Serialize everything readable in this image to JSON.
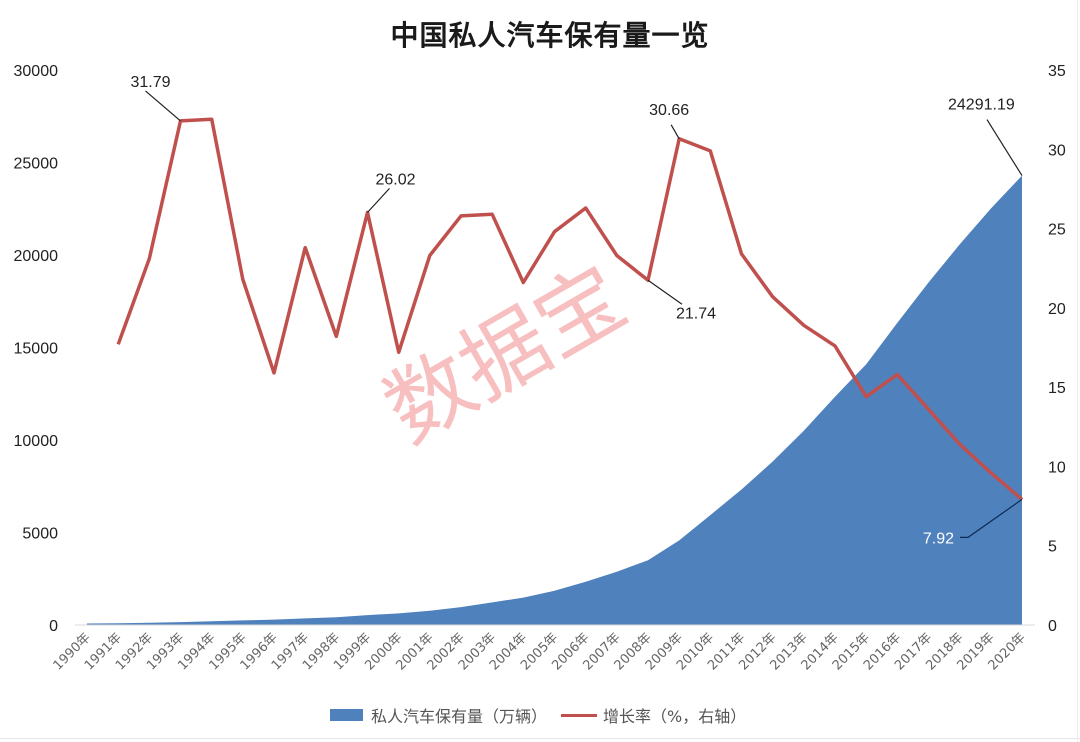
{
  "chart_data": {
    "type": "area+line",
    "title": "中国私人汽车保有量一览",
    "categories": [
      "1990年",
      "1991年",
      "1992年",
      "1993年",
      "1994年",
      "1995年",
      "1996年",
      "1997年",
      "1998年",
      "1999年",
      "2000年",
      "2001年",
      "2002年",
      "2003年",
      "2004年",
      "2005年",
      "2006年",
      "2007年",
      "2008年",
      "2009年",
      "2010年",
      "2011年",
      "2012年",
      "2013年",
      "2014年",
      "2015年",
      "2016年",
      "2017年",
      "2018年",
      "2019年",
      "2020年"
    ],
    "series": [
      {
        "name": "私人汽车保有量（万辆）",
        "type": "area",
        "axis": "left",
        "color": "#4f81bd",
        "values": [
          82,
          96,
          118,
          156,
          206,
          250,
          290,
          358,
          424,
          534,
          625,
          771,
          969,
          1219,
          1482,
          1848,
          2333,
          2876,
          3501,
          4575,
          5939,
          7327,
          8839,
          10502,
          12339,
          14099,
          16330,
          18515,
          20575,
          22509,
          24291.19
        ]
      },
      {
        "name": "增长率（%，右轴）",
        "type": "line",
        "axis": "right",
        "color": "#c0504d",
        "values": [
          null,
          17.7,
          23.1,
          31.79,
          31.9,
          21.8,
          15.9,
          23.8,
          18.2,
          26.02,
          17.2,
          23.3,
          25.8,
          25.9,
          21.6,
          24.8,
          26.3,
          23.3,
          21.74,
          30.66,
          29.9,
          23.4,
          20.7,
          18.9,
          17.6,
          14.4,
          15.8,
          13.6,
          11.4,
          9.6,
          7.92
        ]
      }
    ],
    "annotations": [
      {
        "series": 1,
        "index": 3,
        "text": "31.79"
      },
      {
        "series": 1,
        "index": 9,
        "text": "26.02"
      },
      {
        "series": 1,
        "index": 18,
        "text": "21.74"
      },
      {
        "series": 1,
        "index": 19,
        "text": "30.66"
      },
      {
        "series": 1,
        "index": 30,
        "text": "7.92"
      },
      {
        "series": 0,
        "index": 30,
        "text": "24291.19"
      }
    ],
    "y_left": {
      "ticks": [
        "0",
        "5000",
        "10000",
        "15000",
        "20000",
        "25000",
        "30000"
      ],
      "range": [
        0,
        30000
      ]
    },
    "y_right": {
      "ticks": [
        "0",
        "5",
        "10",
        "15",
        "20",
        "25",
        "30",
        "35"
      ],
      "range": [
        0,
        35
      ]
    },
    "grid": false,
    "legend_position": "bottom",
    "watermark": "数据宝"
  }
}
